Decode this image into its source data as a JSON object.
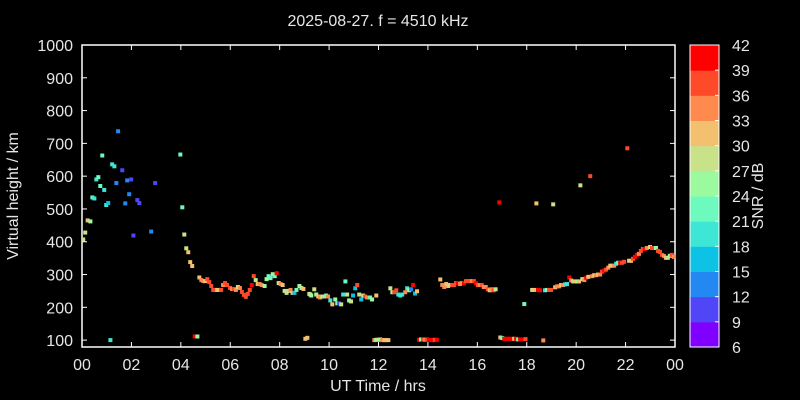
{
  "chart_data": {
    "type": "scatter",
    "title": "2025-08-27. f = 4510 kHz",
    "xlabel": "UT Time / hrs",
    "ylabel": "Virtual height / km",
    "xlim": [
      0,
      24
    ],
    "ylim": [
      79,
      1000
    ],
    "x_ticks": [
      "00",
      "02",
      "04",
      "06",
      "08",
      "10",
      "12",
      "14",
      "16",
      "18",
      "20",
      "22",
      "00"
    ],
    "y_ticks": [
      "100",
      "200",
      "300",
      "400",
      "500",
      "600",
      "700",
      "800",
      "900",
      "1000"
    ],
    "grid": false,
    "colorbar": {
      "label": "SNR / dB",
      "ticks": [
        "6",
        "9",
        "12",
        "15",
        "18",
        "21",
        "24",
        "27",
        "30",
        "33",
        "36",
        "39",
        "42"
      ],
      "range": [
        6,
        42
      ],
      "colors": [
        "#8000ff",
        "#5046f8",
        "#2488f2",
        "#0ec2e6",
        "#3ee6d6",
        "#6cfabe",
        "#9cfa9e",
        "#c8e28a",
        "#f2c06e",
        "#ff8a4e",
        "#ff4a2a",
        "#ff0000"
      ]
    },
    "point_fields": [
      "ut_hours",
      "virtual_height_km",
      "snr_db"
    ],
    "points": [
      [
        0.05,
        407,
        27
      ],
      [
        0.13,
        428,
        28
      ],
      [
        0.23,
        465,
        31
      ],
      [
        0.34,
        462,
        24
      ],
      [
        0.42,
        535,
        22
      ],
      [
        0.5,
        532,
        20
      ],
      [
        0.58,
        590,
        20
      ],
      [
        0.66,
        597,
        23
      ],
      [
        0.74,
        570,
        22
      ],
      [
        0.82,
        663,
        22
      ],
      [
        0.9,
        558,
        18
      ],
      [
        0.98,
        512,
        18
      ],
      [
        1.06,
        518,
        17
      ],
      [
        1.15,
        100,
        18
      ],
      [
        1.22,
        636,
        19
      ],
      [
        1.31,
        630,
        18
      ],
      [
        1.39,
        579,
        14
      ],
      [
        1.46,
        737,
        14
      ],
      [
        1.63,
        618,
        10
      ],
      [
        1.75,
        517,
        13
      ],
      [
        1.83,
        587,
        14
      ],
      [
        1.91,
        545,
        13
      ],
      [
        1.99,
        590,
        10
      ],
      [
        2.08,
        419,
        10
      ],
      [
        2.24,
        527,
        10
      ],
      [
        2.32,
        518,
        10
      ],
      [
        2.8,
        431,
        12
      ],
      [
        2.96,
        579,
        10
      ],
      [
        3.98,
        666,
        22
      ],
      [
        4.06,
        505,
        22
      ],
      [
        4.14,
        422,
        28
      ],
      [
        4.22,
        380,
        28
      ],
      [
        4.3,
        368,
        31
      ],
      [
        4.38,
        338,
        31
      ],
      [
        4.46,
        326,
        31
      ],
      [
        4.56,
        111,
        40
      ],
      [
        4.67,
        111,
        25
      ],
      [
        4.75,
        291,
        31
      ],
      [
        4.83,
        283,
        35
      ],
      [
        4.91,
        280,
        34
      ],
      [
        4.99,
        280,
        32
      ],
      [
        5.07,
        286,
        38
      ],
      [
        5.15,
        277,
        36
      ],
      [
        5.23,
        265,
        38
      ],
      [
        5.31,
        253,
        38
      ],
      [
        5.39,
        253,
        36
      ],
      [
        5.47,
        253,
        30
      ],
      [
        5.55,
        253,
        32
      ],
      [
        5.63,
        253,
        38
      ],
      [
        5.71,
        268,
        33
      ],
      [
        5.79,
        274,
        38
      ],
      [
        5.87,
        268,
        37
      ],
      [
        5.99,
        259,
        37
      ],
      [
        6.07,
        256,
        34
      ],
      [
        6.15,
        256,
        36
      ],
      [
        6.23,
        253,
        35
      ],
      [
        6.31,
        262,
        28
      ],
      [
        6.39,
        259,
        34
      ],
      [
        6.47,
        247,
        37
      ],
      [
        6.55,
        238,
        36
      ],
      [
        6.63,
        232,
        37
      ],
      [
        6.71,
        241,
        37
      ],
      [
        6.79,
        253,
        36
      ],
      [
        6.87,
        268,
        41
      ],
      [
        6.95,
        295,
        38
      ],
      [
        7.03,
        283,
        27
      ],
      [
        7.11,
        271,
        32
      ],
      [
        7.19,
        271,
        33
      ],
      [
        7.27,
        268,
        34
      ],
      [
        7.39,
        265,
        25
      ],
      [
        7.47,
        286,
        26
      ],
      [
        7.55,
        295,
        23
      ],
      [
        7.63,
        289,
        22
      ],
      [
        7.72,
        301,
        25
      ],
      [
        7.8,
        295,
        23
      ],
      [
        7.88,
        304,
        41
      ],
      [
        7.96,
        274,
        28
      ],
      [
        8.04,
        271,
        34
      ],
      [
        8.12,
        268,
        32
      ],
      [
        8.2,
        250,
        28
      ],
      [
        8.28,
        244,
        29
      ],
      [
        8.36,
        250,
        28
      ],
      [
        8.44,
        253,
        35
      ],
      [
        8.52,
        244,
        31
      ],
      [
        8.6,
        244,
        16
      ],
      [
        8.68,
        253,
        22
      ],
      [
        8.8,
        265,
        25
      ],
      [
        8.88,
        259,
        28
      ],
      [
        8.96,
        256,
        32
      ],
      [
        9.04,
        104,
        32
      ],
      [
        9.12,
        107,
        31
      ],
      [
        9.2,
        241,
        27
      ],
      [
        9.24,
        239,
        27
      ],
      [
        9.28,
        236,
        24
      ],
      [
        9.4,
        255,
        28
      ],
      [
        9.48,
        239,
        25
      ],
      [
        9.56,
        233,
        32
      ],
      [
        9.64,
        230,
        35
      ],
      [
        9.72,
        233,
        28
      ],
      [
        9.8,
        233,
        27
      ],
      [
        9.88,
        236,
        23
      ],
      [
        9.96,
        233,
        33
      ],
      [
        10.05,
        221,
        20
      ],
      [
        10.13,
        209,
        32
      ],
      [
        10.25,
        224,
        24
      ],
      [
        10.33,
        212,
        22
      ],
      [
        10.41,
        212,
        9
      ],
      [
        10.49,
        209,
        27
      ],
      [
        10.57,
        239,
        20
      ],
      [
        10.66,
        279,
        23
      ],
      [
        10.73,
        239,
        28
      ],
      [
        10.81,
        221,
        24
      ],
      [
        10.89,
        218,
        28
      ],
      [
        10.97,
        236,
        16
      ],
      [
        11.06,
        258,
        16
      ],
      [
        11.14,
        268,
        37
      ],
      [
        11.22,
        239,
        27
      ],
      [
        11.3,
        224,
        16
      ],
      [
        11.38,
        236,
        28
      ],
      [
        11.46,
        233,
        36
      ],
      [
        11.54,
        230,
        35
      ],
      [
        11.66,
        230,
        21
      ],
      [
        11.74,
        224,
        26
      ],
      [
        11.91,
        236,
        32
      ],
      [
        11.83,
        100,
        35
      ],
      [
        11.91,
        101,
        25
      ],
      [
        11.99,
        101,
        27
      ],
      [
        12.07,
        102,
        25
      ],
      [
        12.15,
        100,
        35
      ],
      [
        12.24,
        100,
        31
      ],
      [
        12.32,
        100,
        32
      ],
      [
        12.4,
        100,
        31
      ],
      [
        12.48,
        258,
        27
      ],
      [
        12.56,
        246,
        25
      ],
      [
        12.64,
        246,
        37
      ],
      [
        12.72,
        252,
        38
      ],
      [
        12.8,
        239,
        20
      ],
      [
        12.88,
        236,
        18
      ],
      [
        12.96,
        239,
        20
      ],
      [
        13.08,
        246,
        35
      ],
      [
        13.16,
        258,
        20
      ],
      [
        13.24,
        252,
        25
      ],
      [
        13.32,
        255,
        14
      ],
      [
        13.4,
        268,
        40
      ],
      [
        13.48,
        242,
        16
      ],
      [
        13.56,
        249,
        32
      ],
      [
        13.64,
        101,
        40
      ],
      [
        13.72,
        102,
        26
      ],
      [
        13.8,
        102,
        37
      ],
      [
        13.88,
        101,
        35
      ],
      [
        13.96,
        102,
        36
      ],
      [
        14.04,
        101,
        40
      ],
      [
        14.12,
        100,
        41
      ],
      [
        14.2,
        100,
        41
      ],
      [
        14.28,
        101,
        38
      ],
      [
        14.36,
        101,
        40
      ],
      [
        14.5,
        285,
        32
      ],
      [
        14.58,
        268,
        33
      ],
      [
        14.66,
        262,
        35
      ],
      [
        14.74,
        271,
        31
      ],
      [
        14.82,
        265,
        31
      ],
      [
        14.9,
        268,
        28
      ],
      [
        14.98,
        268,
        36
      ],
      [
        15.06,
        268,
        38
      ],
      [
        15.14,
        274,
        38
      ],
      [
        15.22,
        274,
        40
      ],
      [
        15.3,
        271,
        34
      ],
      [
        15.38,
        274,
        35
      ],
      [
        15.46,
        274,
        41
      ],
      [
        15.54,
        280,
        37
      ],
      [
        15.62,
        280,
        36
      ],
      [
        15.7,
        280,
        37
      ],
      [
        15.78,
        280,
        34
      ],
      [
        15.86,
        280,
        36
      ],
      [
        15.94,
        274,
        39
      ],
      [
        16.02,
        268,
        38
      ],
      [
        16.1,
        268,
        35
      ],
      [
        16.18,
        268,
        36
      ],
      [
        16.26,
        262,
        35
      ],
      [
        16.34,
        262,
        34
      ],
      [
        16.42,
        255,
        38
      ],
      [
        16.5,
        252,
        32
      ],
      [
        16.58,
        255,
        34
      ],
      [
        16.66,
        252,
        38
      ],
      [
        16.74,
        255,
        27
      ],
      [
        16.89,
        520,
        39
      ],
      [
        16.93,
        108,
        31
      ],
      [
        17.01,
        106,
        21
      ],
      [
        17.09,
        104,
        41
      ],
      [
        17.17,
        104,
        41
      ],
      [
        17.25,
        104,
        40
      ],
      [
        17.33,
        104,
        41
      ],
      [
        17.41,
        104,
        40
      ],
      [
        17.49,
        104,
        31
      ],
      [
        17.57,
        104,
        40
      ],
      [
        17.65,
        102,
        23
      ],
      [
        17.73,
        102,
        41
      ],
      [
        17.81,
        102,
        40
      ],
      [
        17.9,
        210,
        23
      ],
      [
        17.95,
        103,
        37
      ],
      [
        18.67,
        99,
        35
      ],
      [
        18.22,
        253,
        28
      ],
      [
        18.3,
        253,
        31
      ],
      [
        18.39,
        517,
        32
      ],
      [
        18.46,
        253,
        39
      ],
      [
        18.54,
        252,
        40
      ],
      [
        18.74,
        252,
        20
      ],
      [
        18.82,
        253,
        24
      ],
      [
        18.9,
        253,
        37
      ],
      [
        18.98,
        253,
        38
      ],
      [
        19.07,
        514,
        28
      ],
      [
        19.15,
        261,
        32
      ],
      [
        19.23,
        264,
        33
      ],
      [
        19.31,
        264,
        35
      ],
      [
        19.39,
        268,
        32
      ],
      [
        19.47,
        268,
        35
      ],
      [
        19.55,
        270,
        20
      ],
      [
        19.63,
        271,
        20
      ],
      [
        19.72,
        291,
        39
      ],
      [
        19.8,
        282,
        34
      ],
      [
        19.88,
        279,
        27
      ],
      [
        19.96,
        279,
        31
      ],
      [
        20.04,
        279,
        24
      ],
      [
        20.12,
        279,
        30
      ],
      [
        20.17,
        572,
        28
      ],
      [
        20.25,
        286,
        28
      ],
      [
        20.33,
        283,
        33
      ],
      [
        20.41,
        290,
        39
      ],
      [
        20.49,
        293,
        32
      ],
      [
        20.57,
        600,
        38
      ],
      [
        20.65,
        295,
        33
      ],
      [
        20.73,
        298,
        31
      ],
      [
        20.81,
        298,
        33
      ],
      [
        20.89,
        300,
        32
      ],
      [
        20.97,
        300,
        34
      ],
      [
        21.05,
        309,
        38
      ],
      [
        21.13,
        312,
        40
      ],
      [
        21.21,
        315,
        37
      ],
      [
        21.3,
        321,
        35
      ],
      [
        21.38,
        327,
        32
      ],
      [
        21.46,
        327,
        31
      ],
      [
        21.54,
        327,
        35
      ],
      [
        21.62,
        333,
        20
      ],
      [
        21.7,
        336,
        22
      ],
      [
        21.78,
        336,
        40
      ],
      [
        21.86,
        336,
        38
      ],
      [
        21.94,
        339,
        37
      ],
      [
        22.07,
        685,
        36
      ],
      [
        22.14,
        342,
        31
      ],
      [
        22.22,
        342,
        32
      ],
      [
        22.3,
        348,
        38
      ],
      [
        22.38,
        354,
        40
      ],
      [
        22.46,
        360,
        39
      ],
      [
        22.54,
        363,
        33
      ],
      [
        22.62,
        372,
        36
      ],
      [
        22.7,
        378,
        38
      ],
      [
        22.78,
        378,
        39
      ],
      [
        22.86,
        381,
        35
      ],
      [
        22.99,
        384,
        27
      ],
      [
        23.07,
        381,
        36
      ],
      [
        23.15,
        381,
        37
      ],
      [
        23.23,
        381,
        24
      ],
      [
        23.31,
        372,
        36
      ],
      [
        23.39,
        369,
        37
      ],
      [
        23.47,
        360,
        36
      ],
      [
        23.55,
        357,
        33
      ],
      [
        23.63,
        351,
        31
      ],
      [
        23.71,
        351,
        28
      ],
      [
        23.79,
        357,
        25
      ],
      [
        23.87,
        360,
        36
      ],
      [
        23.95,
        354,
        35
      ]
    ]
  }
}
